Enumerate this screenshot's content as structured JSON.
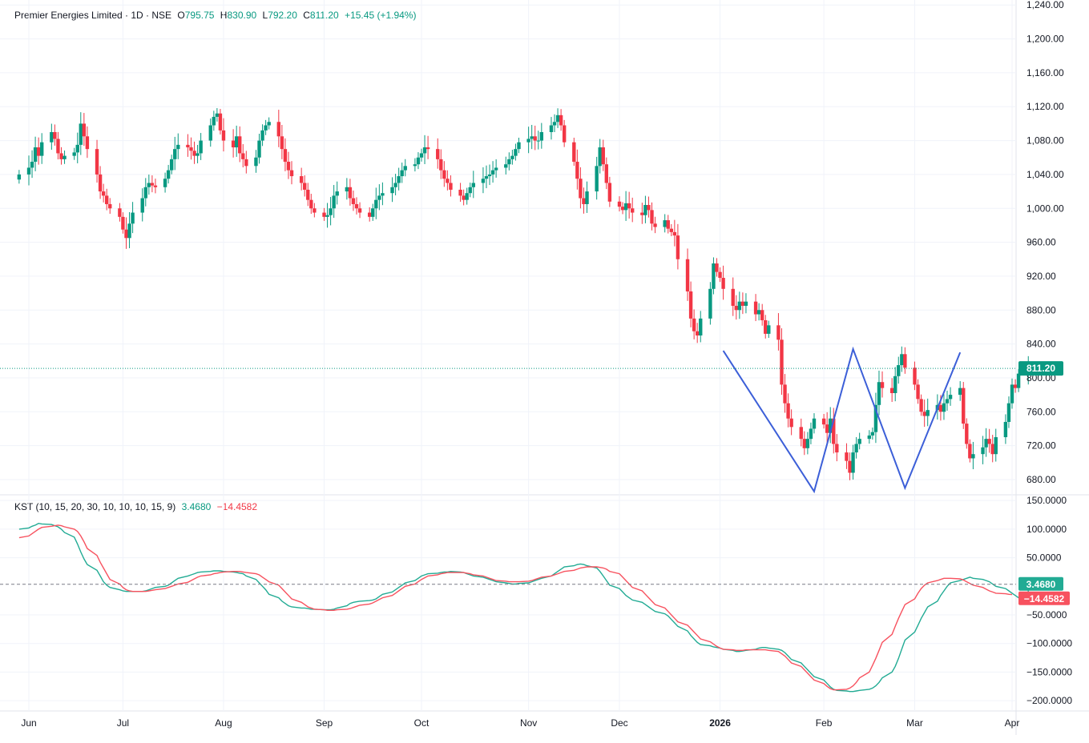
{
  "header": {
    "symbol": "Premier Energies Limited · 1D · NSE",
    "open_label": "O",
    "open": "795.75",
    "high_label": "H",
    "high": "830.90",
    "low_label": "L",
    "low": "792.20",
    "close_label": "C",
    "close": "811.20",
    "change": "+15.45 (+1.94%)"
  },
  "indicator": {
    "name": "KST (10, 15, 20, 30, 10, 10, 10, 15, 9)",
    "kst_value": "3.4680",
    "signal_value": "−14.4582"
  },
  "colors": {
    "up": "#089981",
    "down": "#f23645",
    "kst": "#22ab94",
    "signal": "#f7525f",
    "pattern": "#3c5fd8",
    "grid": "#f0f3fa",
    "price_line": "#089981"
  },
  "chart_data": [
    {
      "type": "candlestick",
      "title": "Premier Energies Limited · 1D · NSE",
      "y_ticks": [
        "1,240.00",
        "1,200.00",
        "1,160.00",
        "1,120.00",
        "1,080.00",
        "1,040.00",
        "1,000.00",
        "960.00",
        "920.00",
        "880.00",
        "840.00",
        "800.00",
        "760.00",
        "720.00",
        "680.00"
      ],
      "ylim": [
        662,
        1244
      ],
      "x_ticks": [
        {
          "label": "Jun",
          "date": "2025-06-02"
        },
        {
          "label": "Jul",
          "date": "2025-07-01"
        },
        {
          "label": "Aug",
          "date": "2025-08-01"
        },
        {
          "label": "Sep",
          "date": "2025-09-01"
        },
        {
          "label": "Oct",
          "date": "2025-10-01"
        },
        {
          "label": "Nov",
          "date": "2025-11-03"
        },
        {
          "label": "Dec",
          "date": "2025-12-01"
        },
        {
          "label": "2026",
          "date": "2026-01-01",
          "bold": true
        },
        {
          "label": "Feb",
          "date": "2026-02-02"
        },
        {
          "label": "Mar",
          "date": "2026-03-02"
        },
        {
          "label": "Apr",
          "date": "2026-04-01"
        }
      ],
      "last_price": 811.2,
      "last_price_label": "811.20",
      "closes": [
        1040,
        1048,
        1055,
        1072,
        1062,
        1078,
        1090,
        1082,
        1065,
        1058,
        1062,
        1066,
        1075,
        1100,
        1085,
        1070,
        1040,
        1020,
        1015,
        1005,
        1000,
        990,
        975,
        965,
        982,
        995,
        1012,
        1025,
        1030,
        1027,
        1025,
        1035,
        1045,
        1058,
        1070,
        1075,
        1072,
        1068,
        1062,
        1065,
        1080,
        1098,
        1108,
        1112,
        1092,
        1080,
        1072,
        1085,
        1065,
        1058,
        1050,
        1060,
        1080,
        1092,
        1098,
        1102,
        1085,
        1070,
        1055,
        1045,
        1038,
        1030,
        1022,
        1010,
        1000,
        995,
        990,
        992,
        1000,
        1015,
        1020,
        1025,
        1012,
        1005,
        1000,
        995,
        990,
        1000,
        1010,
        1015,
        1018,
        1025,
        1030,
        1038,
        1045,
        1050,
        1052,
        1060,
        1065,
        1072,
        1070,
        1058,
        1045,
        1035,
        1030,
        1022,
        1015,
        1010,
        1018,
        1025,
        1030,
        1035,
        1038,
        1040,
        1045,
        1048,
        1052,
        1058,
        1062,
        1070,
        1078,
        1082,
        1085,
        1080,
        1080,
        1090,
        1098,
        1102,
        1110,
        1098,
        1078,
        1055,
        1035,
        1012,
        1005,
        1020,
        1050,
        1072,
        1052,
        1030,
        1008,
        1002,
        998,
        1006,
        1000,
        995,
        992,
        1004,
        998,
        982,
        978,
        986,
        976,
        972,
        968,
        940,
        902,
        870,
        855,
        850,
        870,
        905,
        935,
        925,
        918,
        905,
        885,
        880,
        890,
        885,
        890,
        875,
        880,
        868,
        852,
        862,
        845,
        792,
        770,
        752,
        742,
        728,
        717,
        728,
        740,
        752,
        745,
        735,
        752,
        722,
        712,
        702,
        688,
        712,
        722,
        728,
        732,
        736,
        768,
        795,
        788,
        782,
        802,
        815,
        828,
        812,
        792,
        775,
        760,
        755,
        762,
        768,
        760,
        770,
        775,
        780,
        788,
        746,
        722,
        705,
        710,
        718,
        728,
        722,
        710,
        730,
        748,
        770,
        792,
        788,
        805,
        811.2
      ]
    },
    {
      "type": "line",
      "title": "KST (10, 15, 20, 30, 10, 10, 10, 15, 9)",
      "y_ticks": [
        "150.0000",
        "100.0000",
        "50.0000",
        "−50.0000",
        "−100.0000",
        "−150.0000",
        "−200.0000"
      ],
      "ylim": [
        -218,
        160
      ],
      "reference_line": 3.468,
      "series": [
        {
          "name": "KST",
          "last": 3.468,
          "last_label": "3.4680",
          "values": [
            100,
            102,
            105,
            107,
            110,
            109,
            108,
            106,
            104,
            100,
            94,
            86,
            74,
            60,
            48,
            38,
            28,
            18,
            8,
            2,
            -2,
            -6,
            -8,
            -9,
            -9,
            -9,
            -9,
            -8,
            -6,
            -4,
            -2,
            0,
            2,
            6,
            10,
            14,
            18,
            20,
            22,
            24,
            25,
            26,
            27,
            27,
            27,
            26,
            25,
            24,
            23,
            22,
            18,
            12,
            6,
            0,
            -6,
            -14,
            -20,
            -26,
            -30,
            -34,
            -36,
            -38,
            -38,
            -39,
            -40,
            -40,
            -41,
            -41,
            -41,
            -40,
            -38,
            -34,
            -30,
            -28,
            -27,
            -26,
            -25,
            -24,
            -22,
            -18,
            -14,
            -10,
            -6,
            -2,
            2,
            6,
            10,
            14,
            18,
            20,
            22,
            23,
            24,
            25,
            25,
            26,
            25,
            24,
            22,
            20,
            18,
            16,
            14,
            12,
            10,
            8,
            6,
            5,
            4,
            4,
            5,
            6,
            8,
            10,
            12,
            14,
            18,
            22,
            26,
            30,
            34,
            36,
            38,
            39,
            38,
            36,
            32,
            26,
            18,
            10,
            2,
            -4,
            -10,
            -16,
            -20,
            -24,
            -28,
            -32,
            -36,
            -40,
            -44,
            -48,
            -52,
            -58,
            -64,
            -70,
            -78,
            -86,
            -92,
            -98,
            -102,
            -104,
            -106,
            -107,
            -108,
            -110,
            -112,
            -114,
            -114,
            -113,
            -112,
            -110,
            -108,
            -107,
            -107,
            -108,
            -110,
            -112,
            -116,
            -122,
            -128,
            -134,
            -140,
            -146,
            -152,
            -158,
            -164,
            -170,
            -176,
            -180,
            -182,
            -183,
            -184,
            -184,
            -183,
            -182,
            -180,
            -178,
            -174,
            -168,
            -160,
            -150,
            -140,
            -126,
            -110,
            -94,
            -80,
            -68,
            -56,
            -46,
            -36,
            -26,
            -16,
            -8,
            0,
            6,
            10,
            12,
            14,
            16,
            14,
            12,
            10,
            8,
            4,
            0,
            -4,
            -8,
            -12,
            -16,
            -20,
            -22,
            -22,
            -20,
            -16,
            -10,
            -4,
            0,
            3.468
          ]
        },
        {
          "name": "KST Signal",
          "last": -14.4582,
          "last_label": "−14.4582",
          "values": [
            85,
            88,
            92,
            96,
            100,
            103,
            105,
            106,
            107,
            106,
            104,
            100,
            96,
            88,
            78,
            66,
            54,
            42,
            32,
            22,
            12,
            4,
            -2,
            -6,
            -8,
            -9,
            -9,
            -9,
            -8,
            -7,
            -6,
            -4,
            -2,
            0,
            2,
            4,
            7,
            10,
            13,
            16,
            18,
            20,
            22,
            23,
            24,
            25,
            26,
            26,
            26,
            25,
            24,
            22,
            20,
            16,
            12,
            8,
            2,
            -4,
            -10,
            -16,
            -22,
            -28,
            -32,
            -36,
            -38,
            -40,
            -41,
            -42,
            -42,
            -42,
            -41,
            -40,
            -39,
            -37,
            -35,
            -33,
            -31,
            -29,
            -26,
            -23,
            -20,
            -16,
            -12,
            -8,
            -4,
            0,
            4,
            8,
            12,
            15,
            18,
            20,
            22,
            23,
            24,
            24,
            24,
            24,
            23,
            22,
            20,
            18,
            16,
            14,
            12,
            10,
            9,
            8,
            8,
            8,
            8,
            9,
            10,
            12,
            14,
            16,
            18,
            20,
            22,
            24,
            26,
            28,
            30,
            32,
            33,
            34,
            34,
            33,
            32,
            30,
            26,
            22,
            16,
            10,
            4,
            -2,
            -8,
            -14,
            -20,
            -26,
            -32,
            -38,
            -44,
            -50,
            -56,
            -62,
            -68,
            -74,
            -80,
            -86,
            -92,
            -97,
            -101,
            -105,
            -108,
            -110,
            -111,
            -112,
            -112,
            -112,
            -111,
            -111,
            -111,
            -111,
            -111,
            -112,
            -114,
            -118,
            -122,
            -128,
            -134,
            -140,
            -146,
            -152,
            -158,
            -164,
            -170,
            -175,
            -179,
            -181,
            -181,
            -180,
            -178,
            -174,
            -168,
            -160,
            -150,
            -138,
            -126,
            -112,
            -98,
            -84,
            -70,
            -56,
            -44,
            -32,
            -22,
            -12,
            -4,
            2,
            6,
            10,
            12,
            14,
            14,
            14,
            13,
            11,
            8,
            5,
            2,
            -2,
            -5,
            -8,
            -10,
            -12,
            -13,
            -14,
            -14.4582
          ]
        }
      ]
    }
  ],
  "pattern": {
    "type": "line",
    "points": [
      {
        "date": "2026-01-02",
        "price": 832
      },
      {
        "date": "2026-01-30",
        "price": 666
      },
      {
        "date": "2026-02-11",
        "price": 834
      },
      {
        "date": "2026-02-27",
        "price": 670
      },
      {
        "date": "2026-03-16",
        "price": 830
      }
    ]
  }
}
